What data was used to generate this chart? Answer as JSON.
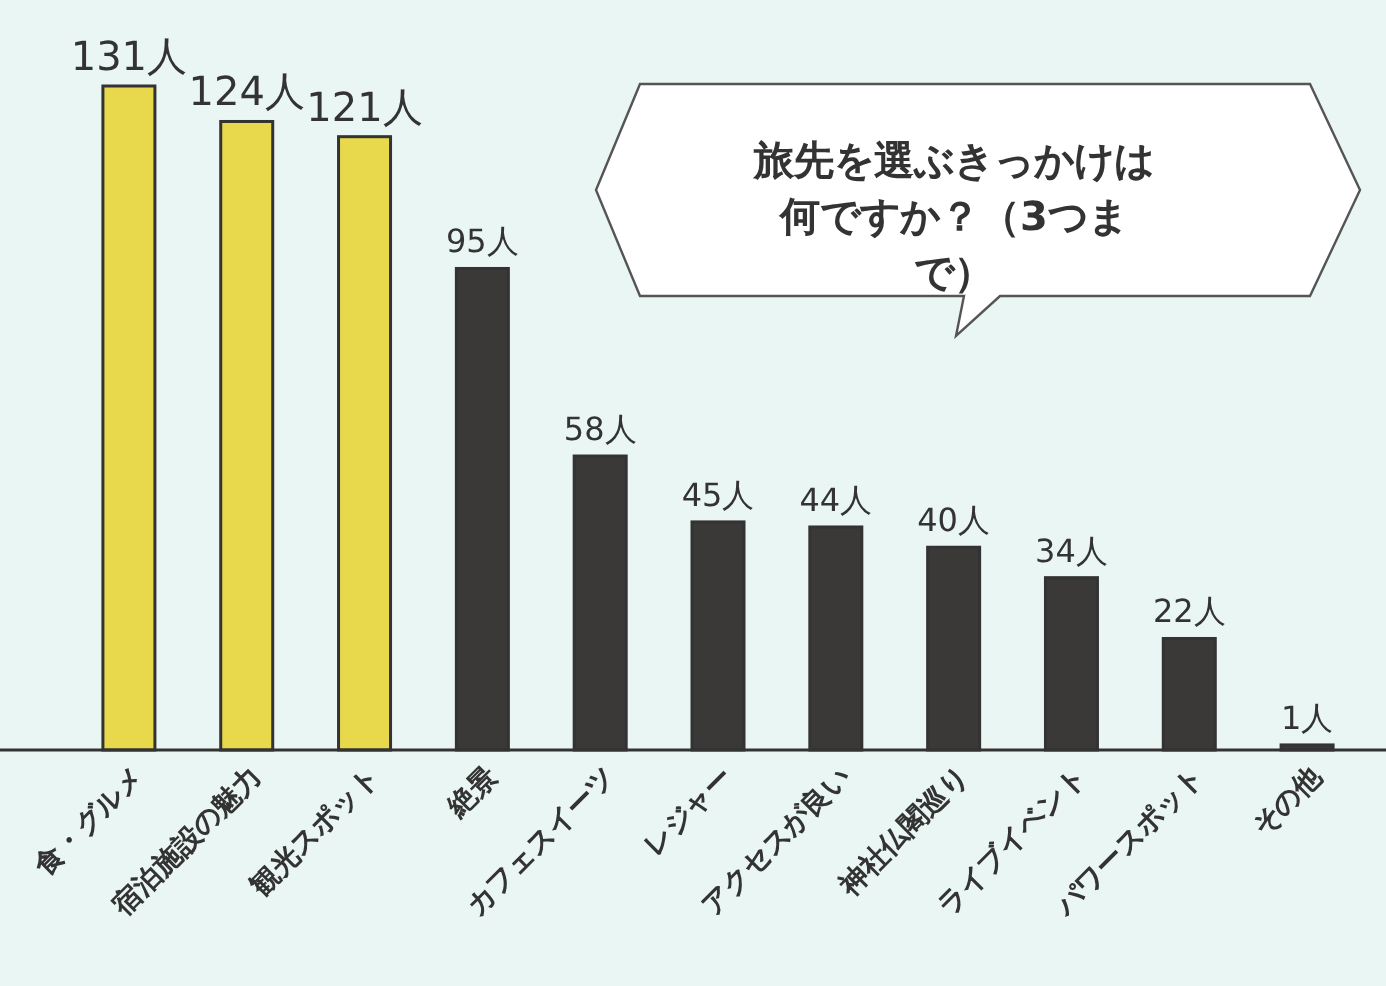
{
  "chart_data": {
    "type": "bar",
    "title": "旅先を選ぶきっかけは何ですか？（3つまで）",
    "categories": [
      "食・グルメ",
      "宿泊施設の魅力",
      "観光スポット",
      "絶景",
      "カフェスイーツ",
      "レジャー",
      "アクセスが良い",
      "神社仏閣巡り",
      "ライブイベント",
      "パワースポット",
      "その他"
    ],
    "values": [
      131,
      124,
      121,
      95,
      58,
      45,
      44,
      40,
      34,
      22,
      1
    ],
    "colors": [
      "#e8d94c",
      "#e8d94c",
      "#e8d94c",
      "#3b3838",
      "#3b3838",
      "#3b3838",
      "#3b3838",
      "#3b3838",
      "#3b3838",
      "#3b3838",
      "#3b3838"
    ],
    "value_labels": [
      "131人",
      "124人",
      "121人",
      "95人",
      "58人",
      "45人",
      "44人",
      "40人",
      "34人",
      "22人",
      "1人"
    ]
  }
}
